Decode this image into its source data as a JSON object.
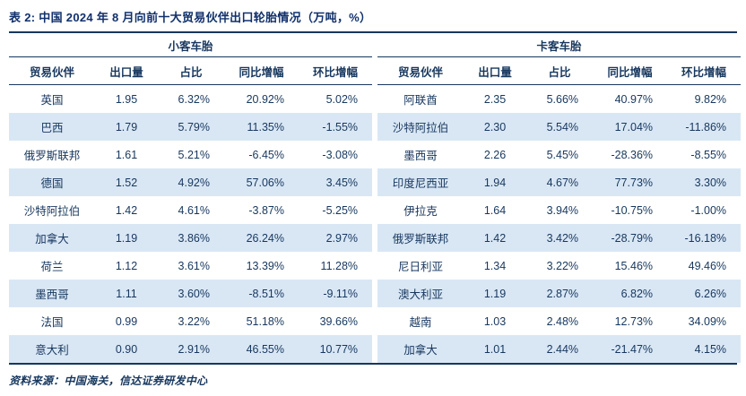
{
  "title": "表 2:  中国 2024 年 8 月向前十大贸易伙伴出口轮胎情况（万吨，%）",
  "footer": "资料来源：中国海关，信达证券研发中心",
  "colors": {
    "text_navy": "#17375E",
    "row_alt_blue": "#D9E7F5",
    "border_navy": "#17375E",
    "background": "#FFFFFF"
  },
  "table": {
    "groups": [
      {
        "label": "小客车胎",
        "columns": [
          "贸易伙伴",
          "出口量",
          "占比",
          "同比增幅",
          "环比增幅"
        ],
        "rows": [
          [
            "英国",
            "1.95",
            "6.32%",
            "20.92%",
            "5.02%"
          ],
          [
            "巴西",
            "1.79",
            "5.79%",
            "11.35%",
            "-1.55%"
          ],
          [
            "俄罗斯联邦",
            "1.61",
            "5.21%",
            "-6.45%",
            "-3.08%"
          ],
          [
            "德国",
            "1.52",
            "4.92%",
            "57.06%",
            "3.45%"
          ],
          [
            "沙特阿拉伯",
            "1.42",
            "4.61%",
            "-3.87%",
            "-5.25%"
          ],
          [
            "加拿大",
            "1.19",
            "3.86%",
            "26.24%",
            "2.97%"
          ],
          [
            "荷兰",
            "1.12",
            "3.61%",
            "13.39%",
            "11.28%"
          ],
          [
            "墨西哥",
            "1.11",
            "3.60%",
            "-8.51%",
            "-9.11%"
          ],
          [
            "法国",
            "0.99",
            "3.22%",
            "51.18%",
            "39.66%"
          ],
          [
            "意大利",
            "0.90",
            "2.91%",
            "46.55%",
            "10.77%"
          ]
        ]
      },
      {
        "label": "卡客车胎",
        "columns": [
          "贸易伙伴",
          "出口量",
          "占比",
          "同比增幅",
          "环比增幅"
        ],
        "rows": [
          [
            "阿联酋",
            "2.35",
            "5.66%",
            "40.97%",
            "9.82%"
          ],
          [
            "沙特阿拉伯",
            "2.30",
            "5.54%",
            "17.04%",
            "-11.86%"
          ],
          [
            "墨西哥",
            "2.26",
            "5.45%",
            "-28.36%",
            "-8.55%"
          ],
          [
            "印度尼西亚",
            "1.94",
            "4.67%",
            "77.73%",
            "3.30%"
          ],
          [
            "伊拉克",
            "1.64",
            "3.94%",
            "-10.75%",
            "-1.00%"
          ],
          [
            "俄罗斯联邦",
            "1.42",
            "3.42%",
            "-28.79%",
            "-16.18%"
          ],
          [
            "尼日利亚",
            "1.34",
            "3.22%",
            "15.46%",
            "49.46%"
          ],
          [
            "澳大利亚",
            "1.19",
            "2.87%",
            "6.82%",
            "6.26%"
          ],
          [
            "越南",
            "1.03",
            "2.48%",
            "12.73%",
            "34.09%"
          ],
          [
            "加拿大",
            "1.01",
            "2.44%",
            "-21.47%",
            "4.15%"
          ]
        ]
      }
    ]
  }
}
